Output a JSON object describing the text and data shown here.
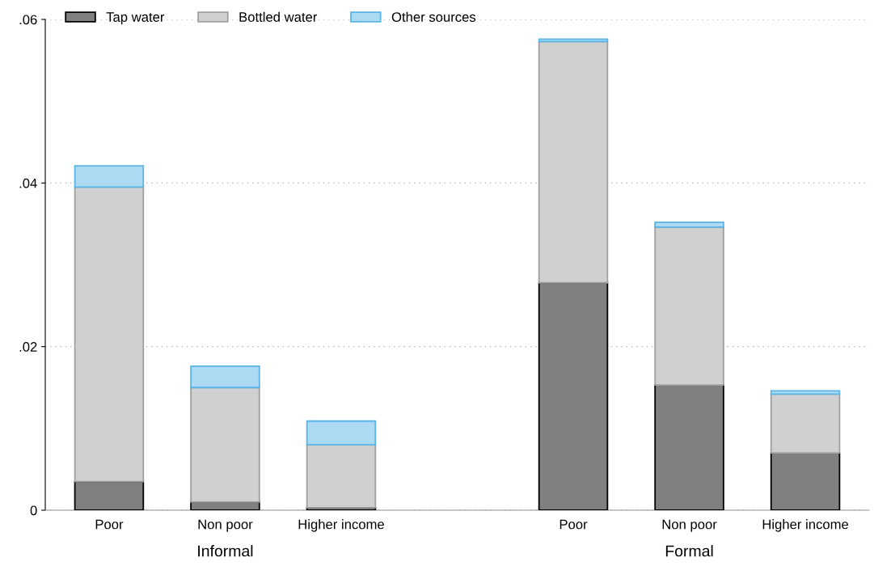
{
  "chart_data": {
    "type": "bar",
    "stacked": true,
    "categories": [
      "Poor",
      "Non poor",
      "Higher income",
      null,
      "Poor",
      "Non poor",
      "Higher income"
    ],
    "series": [
      {
        "name": "Tap water",
        "color": "#808080",
        "values": [
          0.0035,
          0.001,
          0.0003,
          null,
          0.0278,
          0.0153,
          0.007
        ]
      },
      {
        "name": "Bottled water",
        "color": "#d0d0d0",
        "values": [
          0.036,
          0.014,
          0.0077,
          null,
          0.0295,
          0.0193,
          0.0072
        ]
      },
      {
        "name": "Other sources",
        "color": "#acdaf3",
        "values": [
          0.0026,
          0.0026,
          0.0029,
          null,
          0.0003,
          0.0006,
          0.0004
        ]
      }
    ],
    "ylim": [
      0,
      0.06
    ],
    "yticks": [
      0,
      {
        "value": 0.02,
        "label": ".02"
      },
      {
        "value": 0.04,
        "label": ".04"
      },
      {
        "value": 0.06,
        "label": ".06"
      }
    ],
    "grid": "y",
    "legend": "top left",
    "annotations": [
      "Informal",
      "Formal"
    ]
  }
}
